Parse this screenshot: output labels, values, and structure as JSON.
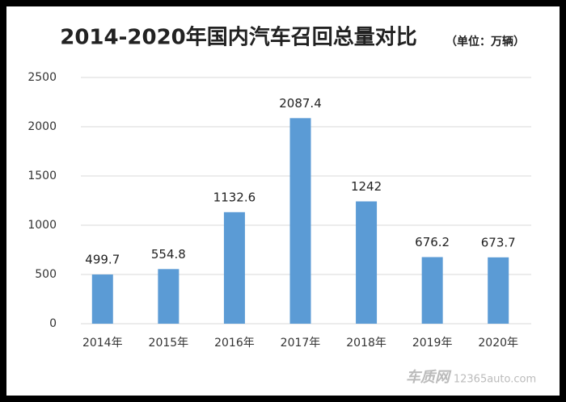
{
  "chart_data": {
    "type": "bar",
    "title": "2014-2020年国内汽车召回总量对比",
    "subtitle": "（单位：万辆）",
    "categories": [
      "2014年",
      "2015年",
      "2016年",
      "2017年",
      "2018年",
      "2019年",
      "2020年"
    ],
    "values": [
      499.7,
      554.8,
      1132.6,
      2087.4,
      1242,
      676.2,
      673.7
    ],
    "color": "#5b9bd5",
    "ylim": [
      0,
      2500
    ],
    "yticks": [
      0,
      500,
      1000,
      1500,
      2000,
      2500
    ],
    "grid": true,
    "watermark": {
      "brand": "车质网",
      "site": "12365auto.com"
    }
  }
}
